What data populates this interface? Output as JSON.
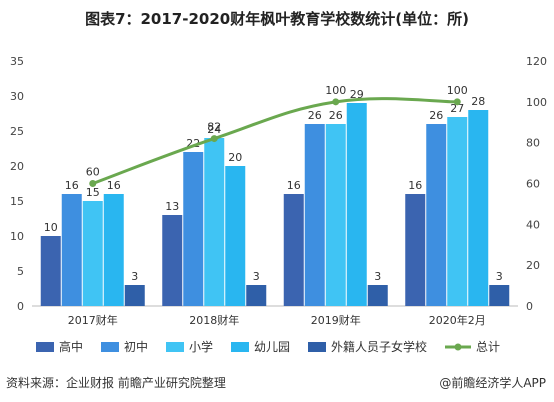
{
  "title": "图表7：2017-2020财年枫叶教育学校数统计(单位：所)",
  "source": "资料来源：企业财报 前瞻产业研究院整理",
  "brand": "@前瞻经济学人APP",
  "chart_data": {
    "type": "bar",
    "categories": [
      "2017财年",
      "2018财年",
      "2019财年",
      "2020年2月"
    ],
    "series": [
      {
        "name": "高中",
        "values": [
          10,
          13,
          16,
          16
        ],
        "color": "#3b64b0"
      },
      {
        "name": "初中",
        "values": [
          16,
          22,
          26,
          26
        ],
        "color": "#3e8fe0"
      },
      {
        "name": "小学",
        "values": [
          15,
          24,
          26,
          27
        ],
        "color": "#40c4f4"
      },
      {
        "name": "幼儿园",
        "values": [
          16,
          20,
          29,
          28
        ],
        "color": "#29b6f0"
      },
      {
        "name": "外籍人员子女学校",
        "values": [
          3,
          3,
          3,
          3
        ],
        "color": "#2f5fa8"
      }
    ],
    "line": {
      "name": "总计",
      "values": [
        60,
        82,
        100,
        100
      ],
      "color": "#6aa84f",
      "axis": "right"
    },
    "y_left": {
      "min": 0,
      "max": 35,
      "ticks": [
        0,
        5,
        10,
        15,
        20,
        25,
        30,
        35
      ]
    },
    "y_right": {
      "min": 0,
      "max": 120,
      "ticks": [
        0,
        20,
        40,
        60,
        80,
        100,
        120
      ]
    },
    "grid": false,
    "legend_position": "bottom"
  }
}
